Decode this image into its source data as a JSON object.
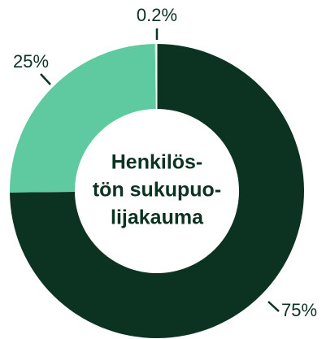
{
  "chart_data": {
    "type": "donut",
    "title_lines": [
      "Henkilös-",
      "tön sukupuo-",
      "lijakauma"
    ],
    "categories": [
      null,
      null,
      null
    ],
    "values": [
      75,
      25,
      0.2
    ],
    "value_labels": [
      "75%",
      "25%",
      "0.2%"
    ],
    "colors": [
      "#0c3222",
      "#5fcaa0",
      "#d6f3e4"
    ]
  }
}
